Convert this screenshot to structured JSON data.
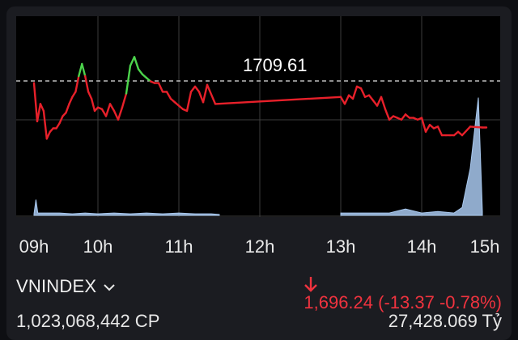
{
  "index": {
    "name": "VNINDEX",
    "value": "1,696.24",
    "change": "(-13.37 -0.78%)",
    "volume": "1,023,068,442 CP",
    "turnover": "27,428.069 Tỷ"
  },
  "chart": {
    "reference_label": "1709.61",
    "x_ticks": [
      "09h",
      "10h",
      "11h",
      "12h",
      "13h",
      "14h",
      "15h"
    ]
  },
  "colors": {
    "up": "#4cd44c",
    "down": "#e8202a",
    "volume": "#a8c8ee",
    "change_text": "#f0333f"
  },
  "chart_data": {
    "type": "line",
    "reference": 1709.61,
    "ylim": [
      1680,
      1730
    ],
    "price_series": {
      "x": [
        9.0,
        9.05,
        9.1,
        9.15,
        9.2,
        9.25,
        9.3,
        9.35,
        9.4,
        9.45,
        9.5,
        9.55,
        9.6,
        9.65,
        9.7,
        9.75,
        9.8,
        9.85,
        9.9,
        9.95,
        10.0,
        10.05,
        10.1,
        10.15,
        10.2,
        10.25,
        10.3,
        10.35,
        10.4,
        10.45,
        10.5,
        10.55,
        10.6,
        10.65,
        10.7,
        10.75,
        10.8,
        10.85,
        10.9,
        10.95,
        11.0,
        11.05,
        11.1,
        11.15,
        11.2,
        11.25,
        11.3,
        11.35,
        11.45,
        13.0,
        13.05,
        13.1,
        13.15,
        13.2,
        13.25,
        13.3,
        13.35,
        13.4,
        13.45,
        13.5,
        13.55,
        13.6,
        13.65,
        13.7,
        13.75,
        13.8,
        13.85,
        13.9,
        13.95,
        14.0,
        14.05,
        14.1,
        14.15,
        14.2,
        14.25,
        14.3,
        14.35,
        14.4,
        14.45,
        14.5,
        14.6,
        14.75,
        14.8
      ],
      "y": [
        1709.0,
        1698.0,
        1703.0,
        1701.0,
        1693.0,
        1695.0,
        1696.0,
        1696.0,
        1697.5,
        1699.5,
        1700.5,
        1703.0,
        1705.0,
        1706.5,
        1711.0,
        1714.5,
        1711.0,
        1706.5,
        1704.5,
        1701.0,
        1702.0,
        1701.5,
        1699.5,
        1703.0,
        1701.0,
        1698.5,
        1702.0,
        1706.0,
        1714.0,
        1716.5,
        1713.0,
        1711.5,
        1710.5,
        1709.5,
        1709.0,
        1709.0,
        1706.5,
        1706.5,
        1704.5,
        1703.5,
        1702.5,
        1701.5,
        1701.0,
        1706.5,
        1708.0,
        1706.5,
        1703.5,
        1708.5,
        1703.0,
        1705.0,
        1703.0,
        1705.5,
        1704.5,
        1708.0,
        1707.5,
        1705.0,
        1705.5,
        1704.0,
        1702.5,
        1705.0,
        1701.5,
        1698.5,
        1699.5,
        1699.0,
        1698.5,
        1700.0,
        1699.0,
        1699.0,
        1698.5,
        1699.0,
        1695.0,
        1697.0,
        1696.0,
        1696.5,
        1694.0,
        1694.0,
        1694.0,
        1694.0,
        1695.0,
        1694.0,
        1696.5,
        1696.24,
        1696.24
      ]
    },
    "volume_series": {
      "x": [
        9.0,
        9.03,
        9.06,
        9.2,
        9.4,
        9.6,
        9.8,
        10.0,
        10.2,
        10.4,
        10.6,
        10.8,
        11.0,
        11.2,
        11.4,
        11.5,
        13.0,
        13.2,
        13.4,
        13.6,
        13.8,
        14.0,
        14.2,
        14.4,
        14.5,
        14.6,
        14.7,
        14.75
      ],
      "y": [
        2,
        20,
        3,
        3,
        3,
        2,
        3,
        2,
        3,
        2,
        3,
        2,
        3,
        2,
        2,
        1,
        3,
        3,
        3,
        3,
        8,
        3,
        5,
        3,
        10,
        60,
        150,
        5
      ]
    }
  }
}
